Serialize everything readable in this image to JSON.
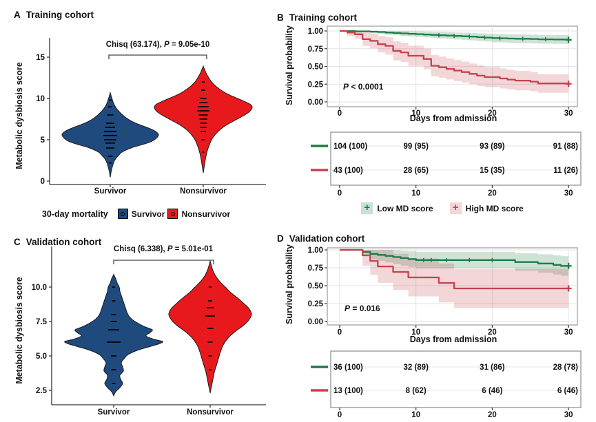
{
  "chart_data": [
    {
      "type": "violin",
      "panel_label": "A",
      "title": "Training cohort",
      "ylabel": "Metabolic dysbiosis score",
      "ylim": [
        0,
        17
      ],
      "yticks": [
        0,
        5,
        10,
        15
      ],
      "ytick_labels": [
        "0",
        "5",
        "10",
        "15"
      ],
      "categories": [
        "Survivor",
        "Nonsurvivor"
      ],
      "annotation": {
        "test": "Chisq (63.174), ",
        "p": "P",
        "rest": " = 9.05e-10"
      },
      "groups": [
        {
          "name": "Survivor",
          "color": "#1F4A7D",
          "profile": [
            [
              0.45,
              0
            ],
            [
              1.2,
              1.5
            ],
            [
              2,
              4
            ],
            [
              2.6,
              7
            ],
            [
              3,
              11
            ],
            [
              3.5,
              17
            ],
            [
              4,
              30
            ],
            [
              4.4,
              46
            ],
            [
              4.8,
              60
            ],
            [
              5.2,
              67
            ],
            [
              5.6,
              70
            ],
            [
              6,
              66
            ],
            [
              6.4,
              56
            ],
            [
              6.8,
              43
            ],
            [
              7.2,
              32
            ],
            [
              7.6,
              24
            ],
            [
              8,
              18
            ],
            [
              8.4,
              13
            ],
            [
              8.8,
              9
            ],
            [
              9.2,
              6
            ],
            [
              9.6,
              4
            ],
            [
              10,
              2.5
            ],
            [
              10.4,
              1
            ],
            [
              10.7,
              0
            ]
          ],
          "quantiles": [
            [
              2.2,
              4
            ],
            [
              3,
              7
            ],
            [
              4,
              12
            ],
            [
              4.6,
              14
            ],
            [
              5,
              18
            ],
            [
              5.5,
              20
            ],
            [
              6,
              18
            ],
            [
              6.5,
              14
            ],
            [
              7,
              12
            ],
            [
              8,
              9
            ],
            [
              9,
              6
            ],
            [
              9.8,
              4
            ]
          ]
        },
        {
          "name": "Nonsurvivor",
          "color": "#E8191D",
          "profile": [
            [
              1.0,
              0
            ],
            [
              1.8,
              1.5
            ],
            [
              2.6,
              3
            ],
            [
              3.4,
              5
            ],
            [
              4.2,
              8
            ],
            [
              5,
              12
            ],
            [
              5.6,
              17
            ],
            [
              6.2,
              24
            ],
            [
              6.8,
              34
            ],
            [
              7.4,
              47
            ],
            [
              7.9,
              58
            ],
            [
              8.4,
              67
            ],
            [
              8.9,
              71
            ],
            [
              9.3,
              68
            ],
            [
              9.7,
              58
            ],
            [
              10.1,
              47
            ],
            [
              10.5,
              36
            ],
            [
              11,
              26
            ],
            [
              11.5,
              18
            ],
            [
              12,
              12
            ],
            [
              12.5,
              8
            ],
            [
              13,
              4.5
            ],
            [
              13.5,
              2
            ],
            [
              13.9,
              0
            ]
          ],
          "quantiles": [
            [
              3.5,
              3
            ],
            [
              5,
              6
            ],
            [
              6,
              8
            ],
            [
              6.5,
              9
            ],
            [
              7,
              10
            ],
            [
              7.5,
              11
            ],
            [
              8,
              13
            ],
            [
              8.5,
              18
            ],
            [
              9,
              16
            ],
            [
              9.5,
              12
            ],
            [
              10,
              9
            ],
            [
              11,
              6
            ],
            [
              12,
              4
            ]
          ]
        }
      ]
    },
    {
      "type": "km",
      "panel_label": "B",
      "title": "Training cohort",
      "ylabel": "Survival probability",
      "xlabel": "Days from admission",
      "xticks": [
        0,
        10,
        20,
        30
      ],
      "yticks": [
        0,
        0.25,
        0.5,
        0.75,
        1
      ],
      "ytick_labels": [
        "0.00",
        "0.25",
        "0.50",
        "0.75",
        "1.00"
      ],
      "pvalue": {
        "p": "P",
        "rest": " < 0.0001"
      },
      "series": [
        {
          "name": "Low MD score",
          "color": "#1E7B44",
          "n": 104,
          "steps": [
            [
              0,
              1
            ],
            [
              2,
              1
            ],
            [
              2,
              0.995
            ],
            [
              4,
              0.99
            ],
            [
              5,
              0.985
            ],
            [
              6,
              0.978
            ],
            [
              7,
              0.972
            ],
            [
              8,
              0.966
            ],
            [
              9,
              0.96
            ],
            [
              10,
              0.955
            ],
            [
              11,
              0.95
            ],
            [
              12,
              0.945
            ],
            [
              13,
              0.94
            ],
            [
              14,
              0.935
            ],
            [
              15,
              0.93
            ],
            [
              16,
              0.925
            ],
            [
              17,
              0.92
            ],
            [
              18,
              0.913
            ],
            [
              19,
              0.907
            ],
            [
              20,
              0.9
            ],
            [
              21,
              0.897
            ],
            [
              22,
              0.893
            ],
            [
              23,
              0.89
            ],
            [
              25,
              0.887
            ],
            [
              26,
              0.883
            ],
            [
              28,
              0.88
            ],
            [
              30,
              0.875
            ]
          ],
          "censor_days": [
            13,
            15,
            17,
            19,
            21,
            24,
            27,
            30
          ]
        },
        {
          "name": "High MD score",
          "color": "#C2434E",
          "n": 43,
          "steps": [
            [
              0,
              1
            ],
            [
              1,
              1
            ],
            [
              1,
              0.977
            ],
            [
              2,
              0.953
            ],
            [
              3,
              0.884
            ],
            [
              4,
              0.86
            ],
            [
              5,
              0.814
            ],
            [
              6,
              0.79
            ],
            [
              7,
              0.72
            ],
            [
              8,
              0.698
            ],
            [
              9,
              0.65
            ],
            [
              11,
              0.605
            ],
            [
              12,
              0.51
            ],
            [
              13,
              0.488
            ],
            [
              14,
              0.465
            ],
            [
              15,
              0.442
            ],
            [
              16,
              0.42
            ],
            [
              17,
              0.395
            ],
            [
              18,
              0.37
            ],
            [
              19,
              0.35
            ],
            [
              21,
              0.33
            ],
            [
              22,
              0.315
            ],
            [
              23,
              0.3
            ],
            [
              25,
              0.285
            ],
            [
              26,
              0.26
            ],
            [
              30,
              0.255
            ]
          ],
          "censor_days": [
            30
          ]
        }
      ],
      "risk_table": {
        "xticks": [
          0,
          10,
          20,
          30
        ],
        "rows": [
          {
            "color": "#1E7B44",
            "values": [
              "104 (100)",
              "99 (95)",
              "93 (89)",
              "91 (88)"
            ]
          },
          {
            "color": "#C2434E",
            "values": [
              "43 (100)",
              "28 (65)",
              "15 (35)",
              "11 (26)"
            ]
          }
        ]
      }
    },
    {
      "type": "violin",
      "panel_label": "C",
      "title": "Validation cohort",
      "ylabel": "Metabolic dysbiosis score",
      "ylim": [
        2,
        13
      ],
      "yticks": [
        2.5,
        5,
        7.5,
        10
      ],
      "ytick_labels": [
        "2.5",
        "5.0",
        "7.5",
        "10.0"
      ],
      "categories": [
        "Survivor",
        "Nonsurvivor"
      ],
      "annotation": {
        "test": "Chisq (6.338), ",
        "p": "P",
        "rest": " = 5.01e-01"
      },
      "groups": [
        {
          "name": "Survivor",
          "color": "#1F4A7D",
          "profile": [
            [
              2.1,
              0
            ],
            [
              2.4,
              3
            ],
            [
              2.7,
              9
            ],
            [
              3.0,
              13
            ],
            [
              3.3,
              10
            ],
            [
              3.6,
              9
            ],
            [
              3.9,
              14
            ],
            [
              4.2,
              13
            ],
            [
              4.5,
              11
            ],
            [
              4.8,
              15
            ],
            [
              5.1,
              21
            ],
            [
              5.4,
              34
            ],
            [
              5.7,
              54
            ],
            [
              5.9,
              67
            ],
            [
              6.05,
              71
            ],
            [
              6.2,
              59
            ],
            [
              6.45,
              47
            ],
            [
              6.7,
              53
            ],
            [
              6.9,
              56
            ],
            [
              7.1,
              46
            ],
            [
              7.35,
              36
            ],
            [
              7.6,
              28
            ],
            [
              7.9,
              22
            ],
            [
              8.2,
              19
            ],
            [
              8.5,
              17
            ],
            [
              8.8,
              15
            ],
            [
              9.1,
              13
            ],
            [
              9.4,
              11
            ],
            [
              9.7,
              9
            ],
            [
              10,
              8
            ],
            [
              10.3,
              5
            ],
            [
              10.6,
              3
            ],
            [
              10.9,
              0
            ]
          ],
          "quantiles": [
            [
              3,
              5
            ],
            [
              4,
              7
            ],
            [
              5,
              8
            ],
            [
              6,
              20
            ],
            [
              6.9,
              16
            ],
            [
              7.5,
              9
            ],
            [
              8,
              7
            ],
            [
              9,
              5
            ],
            [
              10,
              4
            ]
          ]
        },
        {
          "name": "Nonsurvivor",
          "color": "#E8191D",
          "profile": [
            [
              2.3,
              0
            ],
            [
              2.8,
              2
            ],
            [
              3.3,
              4
            ],
            [
              3.8,
              6
            ],
            [
              4.3,
              9
            ],
            [
              4.8,
              12
            ],
            [
              5.3,
              15
            ],
            [
              5.8,
              19
            ],
            [
              6.3,
              26
            ],
            [
              6.8,
              37
            ],
            [
              7.2,
              48
            ],
            [
              7.6,
              56
            ],
            [
              8.0,
              60
            ],
            [
              8.4,
              57
            ],
            [
              8.8,
              49
            ],
            [
              9.2,
              40
            ],
            [
              9.6,
              30
            ],
            [
              10,
              22
            ],
            [
              10.4,
              14
            ],
            [
              10.8,
              8
            ],
            [
              11.2,
              4
            ],
            [
              11.6,
              1.5
            ],
            [
              11.9,
              0
            ]
          ],
          "quantiles": [
            [
              4,
              4
            ],
            [
              5,
              5
            ],
            [
              6,
              7
            ],
            [
              7,
              9
            ],
            [
              7.9,
              14
            ],
            [
              8.5,
              10
            ],
            [
              9,
              6
            ],
            [
              10,
              4
            ]
          ]
        }
      ]
    },
    {
      "type": "km",
      "panel_label": "D",
      "title": "Validation cohort",
      "ylabel": "Survival probability",
      "xlabel": "Days from admission",
      "xticks": [
        0,
        10,
        20,
        30
      ],
      "yticks": [
        0,
        0.25,
        0.5,
        0.75,
        1
      ],
      "ytick_labels": [
        "0.00",
        "0.25",
        "0.50",
        "0.75",
        "1.00"
      ],
      "pvalue": {
        "p": "P",
        "rest": " = 0.016"
      },
      "series": [
        {
          "name": "Low MD score",
          "color": "#1E7B44",
          "n": 36,
          "steps": [
            [
              0,
              1
            ],
            [
              3,
              1
            ],
            [
              3,
              0.972
            ],
            [
              4,
              0.944
            ],
            [
              5,
              0.93
            ],
            [
              6,
              0.916
            ],
            [
              7,
              0.9
            ],
            [
              8,
              0.886
            ],
            [
              9,
              0.872
            ],
            [
              10,
              0.858
            ],
            [
              23,
              0.83
            ],
            [
              26,
              0.81
            ],
            [
              28,
              0.79
            ],
            [
              29,
              0.776
            ],
            [
              30,
              0.776
            ]
          ],
          "censor_days": [
            11,
            12,
            14,
            17,
            20,
            30
          ]
        },
        {
          "name": "High MD score",
          "color": "#C2434E",
          "n": 13,
          "steps": [
            [
              0,
              1
            ],
            [
              3,
              1
            ],
            [
              3,
              0.923
            ],
            [
              4,
              0.846
            ],
            [
              5,
              0.769
            ],
            [
              7,
              0.692
            ],
            [
              9,
              0.615
            ],
            [
              13,
              0.538
            ],
            [
              15,
              0.462
            ],
            [
              30,
              0.462
            ]
          ],
          "censor_days": [
            30
          ]
        }
      ],
      "risk_table": {
        "xticks": [
          0,
          10,
          20,
          30
        ],
        "rows": [
          {
            "color": "#1E7B44",
            "values": [
              "36 (100)",
              "32 (89)",
              "31 (86)",
              "28 (78)"
            ]
          },
          {
            "color": "#C2434E",
            "values": [
              "13 (100)",
              "8 (62)",
              "6 (46)",
              "6 (46)"
            ]
          }
        ]
      }
    }
  ],
  "legend_mortality": {
    "title": "30-day mortality",
    "items": [
      {
        "label": "Survivor",
        "color": "#1F4A7D"
      },
      {
        "label": "Nonsurvivor",
        "color": "#E8191D"
      }
    ]
  },
  "legend_md": {
    "items": [
      {
        "label": "Low MD score",
        "color": "#1E7B44",
        "band": "#C9E1D3"
      },
      {
        "label": "High MD score",
        "color": "#C2434E",
        "band": "#F4D5D9"
      }
    ]
  }
}
